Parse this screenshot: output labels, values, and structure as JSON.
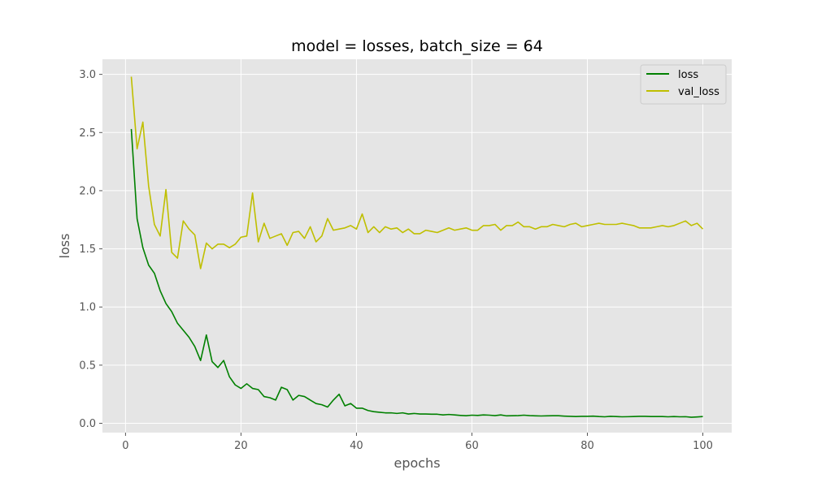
{
  "chart_data": {
    "type": "line",
    "title": "model = losses, batch_size = 64",
    "xlabel": "epochs",
    "ylabel": "loss",
    "xlim": [
      -4,
      105
    ],
    "ylim": [
      -0.08,
      3.13
    ],
    "xticks": [
      0,
      20,
      40,
      60,
      80,
      100
    ],
    "yticks": [
      0.0,
      0.5,
      1.0,
      1.5,
      2.0,
      2.5,
      3.0
    ],
    "xtick_labels": [
      "0",
      "20",
      "40",
      "60",
      "80",
      "100"
    ],
    "ytick_labels": [
      "0.0",
      "0.5",
      "1.0",
      "1.5",
      "2.0",
      "2.5",
      "3.0"
    ],
    "grid": true,
    "legend_position": "top-right",
    "x_start": 1,
    "series": [
      {
        "name": "loss",
        "color": "#008000",
        "values": [
          2.53,
          1.76,
          1.51,
          1.36,
          1.29,
          1.14,
          1.03,
          0.96,
          0.86,
          0.8,
          0.74,
          0.66,
          0.54,
          0.76,
          0.53,
          0.48,
          0.54,
          0.4,
          0.33,
          0.3,
          0.34,
          0.3,
          0.29,
          0.23,
          0.22,
          0.2,
          0.31,
          0.29,
          0.2,
          0.24,
          0.23,
          0.2,
          0.17,
          0.16,
          0.14,
          0.2,
          0.25,
          0.15,
          0.17,
          0.13,
          0.13,
          0.11,
          0.1,
          0.095,
          0.09,
          0.09,
          0.085,
          0.09,
          0.08,
          0.085,
          0.08,
          0.08,
          0.078,
          0.078,
          0.072,
          0.076,
          0.072,
          0.068,
          0.065,
          0.07,
          0.068,
          0.072,
          0.07,
          0.066,
          0.072,
          0.064,
          0.065,
          0.066,
          0.07,
          0.066,
          0.064,
          0.063,
          0.064,
          0.065,
          0.065,
          0.062,
          0.06,
          0.058,
          0.06,
          0.06,
          0.062,
          0.058,
          0.056,
          0.06,
          0.058,
          0.056,
          0.057,
          0.058,
          0.06,
          0.06,
          0.058,
          0.058,
          0.058,
          0.056,
          0.058,
          0.056,
          0.057,
          0.052,
          0.055,
          0.058
        ]
      },
      {
        "name": "val_loss",
        "color": "#bfbf00",
        "values": [
          2.98,
          2.36,
          2.59,
          2.04,
          1.71,
          1.61,
          2.01,
          1.47,
          1.42,
          1.74,
          1.67,
          1.62,
          1.33,
          1.55,
          1.5,
          1.54,
          1.54,
          1.51,
          1.54,
          1.6,
          1.61,
          1.98,
          1.56,
          1.72,
          1.59,
          1.61,
          1.63,
          1.53,
          1.64,
          1.65,
          1.59,
          1.69,
          1.56,
          1.61,
          1.76,
          1.66,
          1.67,
          1.68,
          1.7,
          1.67,
          1.8,
          1.64,
          1.69,
          1.64,
          1.69,
          1.67,
          1.68,
          1.64,
          1.67,
          1.63,
          1.63,
          1.66,
          1.65,
          1.64,
          1.66,
          1.68,
          1.66,
          1.67,
          1.68,
          1.66,
          1.66,
          1.7,
          1.7,
          1.71,
          1.66,
          1.7,
          1.7,
          1.73,
          1.69,
          1.69,
          1.67,
          1.69,
          1.69,
          1.71,
          1.7,
          1.69,
          1.71,
          1.72,
          1.69,
          1.7,
          1.71,
          1.72,
          1.71,
          1.71,
          1.71,
          1.72,
          1.71,
          1.7,
          1.68,
          1.68,
          1.68,
          1.69,
          1.7,
          1.69,
          1.7,
          1.72,
          1.74,
          1.7,
          1.72,
          1.67
        ]
      }
    ]
  }
}
